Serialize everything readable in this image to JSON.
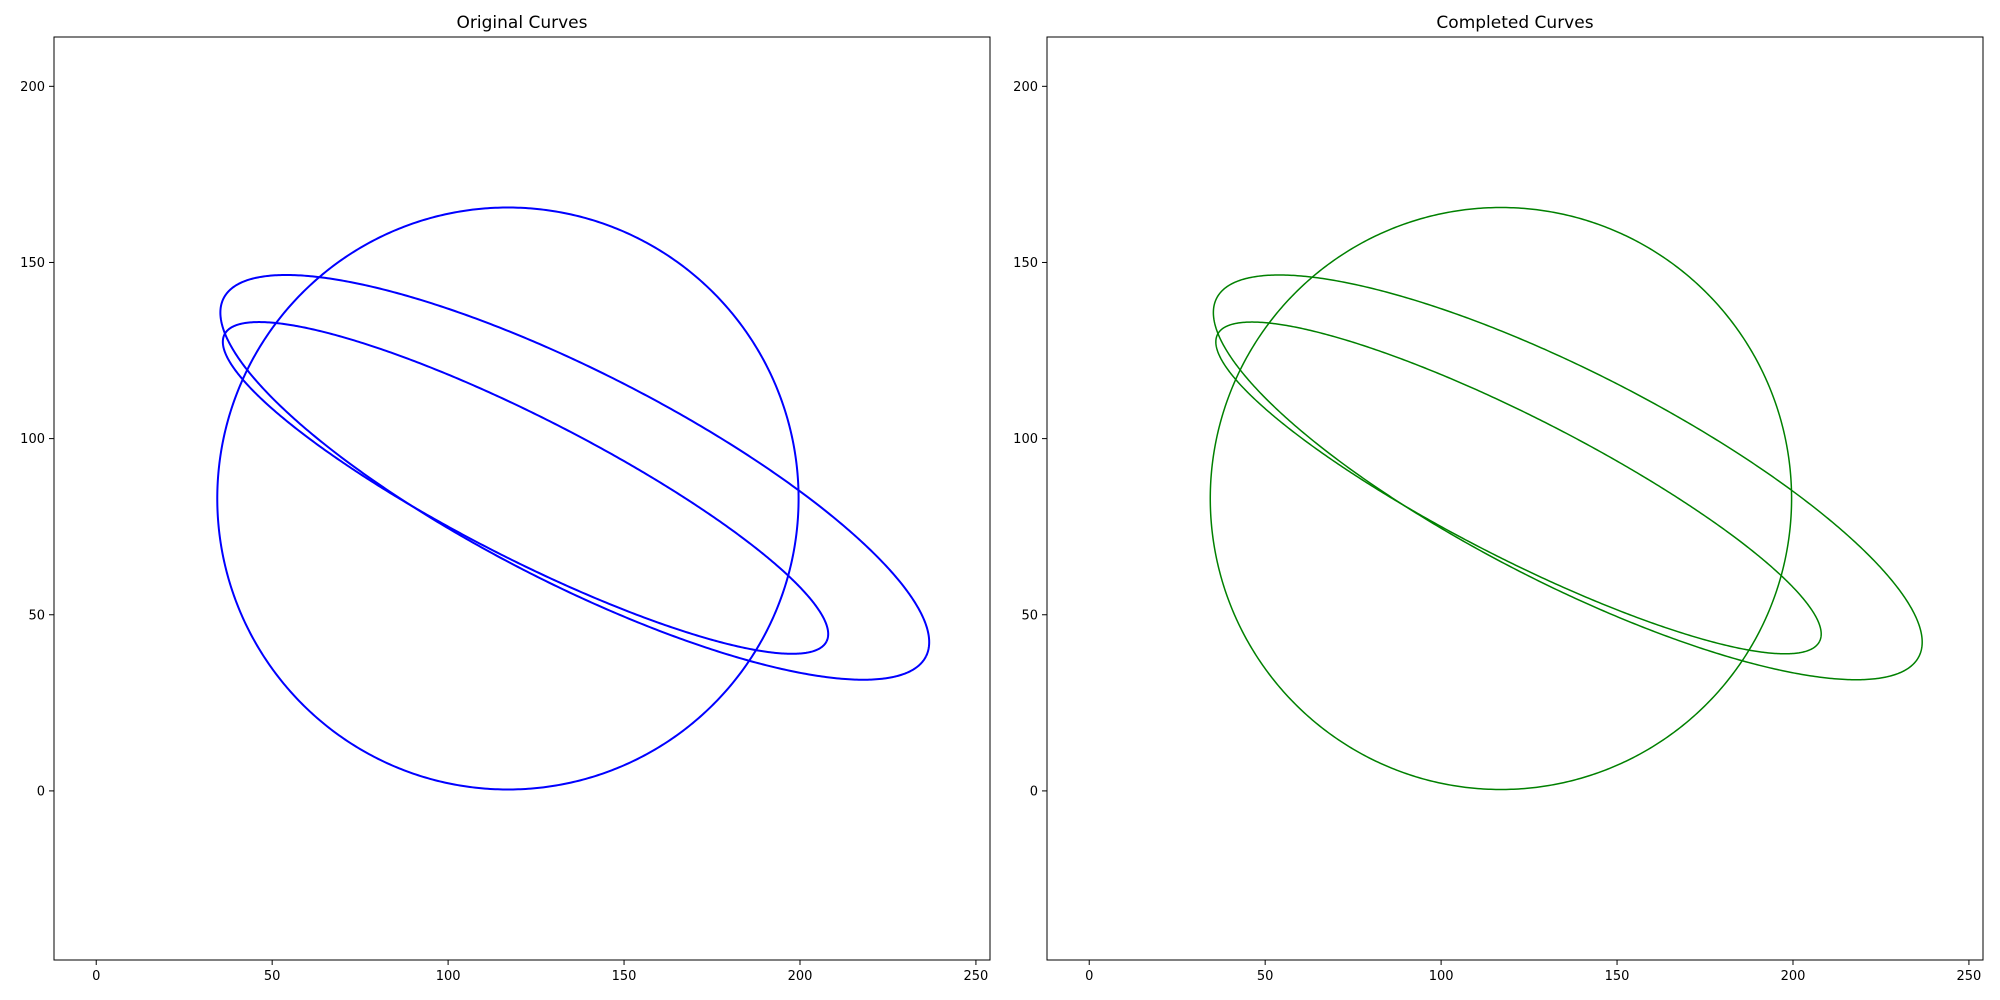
{
  "chart_data": [
    {
      "type": "line",
      "title": "Original Curves",
      "xlim": [
        -12,
        254
      ],
      "ylim": [
        -48,
        214
      ],
      "xticks": [
        0,
        50,
        100,
        150,
        200,
        250
      ],
      "yticks": [
        0,
        50,
        100,
        150,
        200
      ],
      "grid": false,
      "series_color": "#0000ff",
      "series": [
        {
          "shape": "circle",
          "center": [
            117,
            83
          ],
          "radius": 82.6
        },
        {
          "shape": "ellipse",
          "center": [
            136,
            89
          ],
          "semi_axes": [
            112,
            30
          ],
          "rotation_deg": -27
        },
        {
          "shape": "ellipse",
          "center": [
            122,
            86
          ],
          "semi_axes": [
            96,
            20
          ],
          "rotation_deg": -27
        }
      ]
    },
    {
      "type": "line",
      "title": "Completed Curves",
      "xlim": [
        -12,
        254
      ],
      "ylim": [
        -48,
        214
      ],
      "xticks": [
        0,
        50,
        100,
        150,
        200,
        250
      ],
      "yticks": [
        0,
        50,
        100,
        150,
        200
      ],
      "grid": false,
      "series_color": "#008000",
      "series": [
        {
          "shape": "circle",
          "center": [
            117,
            83
          ],
          "radius": 82.6
        },
        {
          "shape": "ellipse",
          "center": [
            136,
            89
          ],
          "semi_axes": [
            112,
            30
          ],
          "rotation_deg": -27
        },
        {
          "shape": "ellipse",
          "center": [
            122,
            86
          ],
          "semi_axes": [
            96,
            20
          ],
          "rotation_deg": -27
        }
      ]
    }
  ]
}
